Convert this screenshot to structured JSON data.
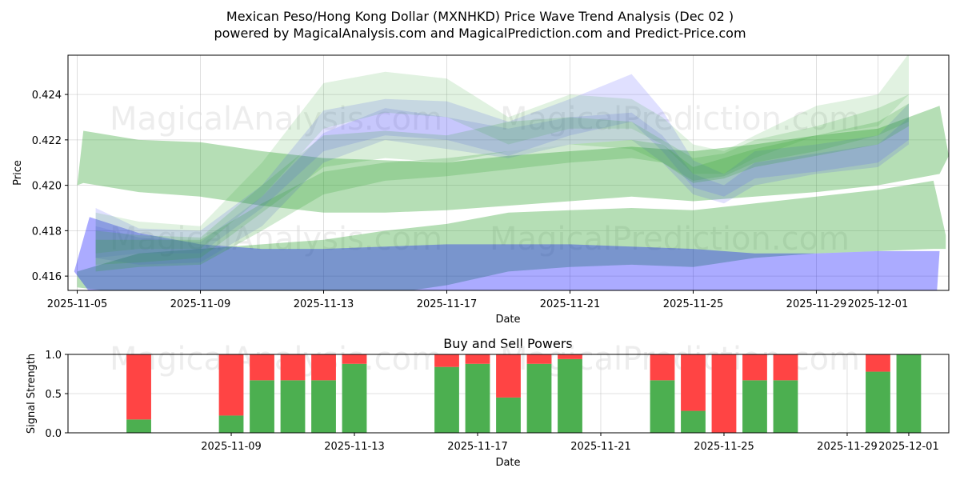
{
  "chart_data": [
    {
      "type": "area",
      "title_line1": "Mexican Peso/Hong Kong Dollar (MXNHKD) Price Wave Trend Analysis (Dec 02 )",
      "title_line2": "powered by MagicalAnalysis.com and MagicalPrediction.com and Predict-Price.com",
      "xlabel": "Date",
      "ylabel": "Price",
      "xlim": [
        -0.3,
        28.3
      ],
      "ylim": [
        0.41537,
        0.42573
      ],
      "x_ticks": [
        {
          "x": 0,
          "label": "2025-11-05"
        },
        {
          "x": 4,
          "label": "2025-11-09"
        },
        {
          "x": 8,
          "label": "2025-11-13"
        },
        {
          "x": 12,
          "label": "2025-11-17"
        },
        {
          "x": 16,
          "label": "2025-11-21"
        },
        {
          "x": 20,
          "label": "2025-11-25"
        },
        {
          "x": 24,
          "label": "2025-11-29"
        },
        {
          "x": 26,
          "label": "2025-12-01"
        }
      ],
      "y_ticks": [
        {
          "v": 0.416,
          "label": "0.416"
        },
        {
          "v": 0.418,
          "label": "0.418"
        },
        {
          "v": 0.42,
          "label": "0.420"
        },
        {
          "v": 0.422,
          "label": "0.422"
        },
        {
          "v": 0.424,
          "label": "0.424"
        }
      ],
      "grid": true,
      "watermarks": [
        "MagicalAnalysis.com",
        "MagicalPrediction.com",
        "MagicalAnalysis.com",
        "MagicalPrediction.com"
      ],
      "bands": [
        {
          "name": "wide-green-upper",
          "color": "#2ca02c",
          "opacity": 0.35,
          "x": [
            0,
            0.2,
            2,
            4,
            6,
            8,
            10,
            12,
            14,
            16,
            18,
            20,
            22,
            24,
            26,
            28,
            28.3
          ],
          "upper": [
            0.42,
            0.4224,
            0.422,
            0.4219,
            0.4215,
            0.4212,
            0.4211,
            0.421,
            0.4213,
            0.4215,
            0.4217,
            0.4215,
            0.4218,
            0.4222,
            0.4225,
            0.4235,
            0.4213
          ],
          "lower": [
            0.42,
            0.4201,
            0.4197,
            0.4195,
            0.4191,
            0.4188,
            0.4188,
            0.4189,
            0.4191,
            0.4193,
            0.4195,
            0.4193,
            0.4195,
            0.4197,
            0.42,
            0.4205,
            0.4213
          ]
        },
        {
          "name": "wide-green-lower",
          "color": "#2ca02c",
          "opacity": 0.35,
          "x": [
            0,
            2,
            4,
            6,
            8,
            10,
            12,
            14,
            16,
            18,
            20,
            22,
            24,
            26,
            27.8,
            28.2
          ],
          "upper": [
            0.4162,
            0.417,
            0.4172,
            0.4174,
            0.4176,
            0.418,
            0.4183,
            0.4188,
            0.4189,
            0.419,
            0.4189,
            0.4192,
            0.4195,
            0.4198,
            0.4202,
            0.4178
          ],
          "lower": [
            0.4155,
            0.4152,
            0.415,
            0.415,
            0.415,
            0.4152,
            0.4156,
            0.4162,
            0.4164,
            0.4165,
            0.4164,
            0.4168,
            0.417,
            0.4171,
            0.4172,
            0.4172
          ]
        },
        {
          "name": "blue-lower",
          "color": "#0000ff",
          "opacity": 0.33,
          "x": [
            -0.1,
            0.4,
            2,
            4,
            6,
            8,
            10,
            12,
            14,
            16,
            18,
            20,
            22,
            24,
            26,
            28,
            27.9
          ],
          "upper": [
            0.4162,
            0.4186,
            0.4179,
            0.4174,
            0.4172,
            0.4172,
            0.4173,
            0.4174,
            0.4174,
            0.4174,
            0.4173,
            0.4172,
            0.417,
            0.417,
            0.4171,
            0.4171,
            0.415
          ],
          "lower": [
            0.4162,
            0.4153,
            0.415,
            0.415,
            0.415,
            0.415,
            0.415,
            0.415,
            0.415,
            0.415,
            0.415,
            0.415,
            0.415,
            0.415,
            0.415,
            0.415,
            0.415
          ]
        },
        {
          "name": "blue-wave-1",
          "color": "#6666ff",
          "opacity": 0.2,
          "x": [
            0.6,
            2,
            4,
            6,
            8,
            10,
            12,
            14,
            16,
            18,
            19,
            20,
            21,
            22,
            24,
            26,
            27
          ],
          "upper": [
            0.419,
            0.4181,
            0.418,
            0.42,
            0.4233,
            0.4238,
            0.4237,
            0.4228,
            0.4238,
            0.4249,
            0.4233,
            0.4211,
            0.4205,
            0.4215,
            0.4218,
            0.4222,
            0.4236
          ],
          "lower": [
            0.4168,
            0.417,
            0.417,
            0.419,
            0.4215,
            0.4222,
            0.422,
            0.4213,
            0.4222,
            0.4228,
            0.4215,
            0.4199,
            0.4195,
            0.4203,
            0.4206,
            0.421,
            0.422
          ]
        },
        {
          "name": "blue-wave-2",
          "color": "#4444ee",
          "opacity": 0.16,
          "x": [
            0.6,
            2,
            4,
            6,
            8,
            10,
            12,
            14,
            16,
            18,
            19,
            20,
            21,
            22,
            24,
            26,
            27
          ],
          "upper": [
            0.4182,
            0.4177,
            0.4175,
            0.4195,
            0.4223,
            0.4234,
            0.423,
            0.4225,
            0.423,
            0.4232,
            0.4222,
            0.4205,
            0.42,
            0.421,
            0.4214,
            0.4218,
            0.423
          ],
          "lower": [
            0.4168,
            0.4165,
            0.4166,
            0.4182,
            0.421,
            0.422,
            0.4216,
            0.4212,
            0.4218,
            0.422,
            0.421,
            0.4196,
            0.4192,
            0.42,
            0.4205,
            0.4208,
            0.4218
          ]
        },
        {
          "name": "green-wave-1",
          "color": "#2ca02c",
          "opacity": 0.14,
          "x": [
            0.6,
            2,
            4,
            6,
            8,
            10,
            12,
            14,
            16,
            18,
            19,
            20,
            21,
            22,
            24,
            26,
            27
          ],
          "upper": [
            0.4188,
            0.4184,
            0.4182,
            0.421,
            0.4245,
            0.425,
            0.4247,
            0.423,
            0.424,
            0.4238,
            0.423,
            0.4218,
            0.4215,
            0.4222,
            0.4235,
            0.424,
            0.4258
          ],
          "lower": [
            0.417,
            0.4172,
            0.4172,
            0.4195,
            0.4225,
            0.4232,
            0.423,
            0.4218,
            0.4225,
            0.4225,
            0.4218,
            0.4205,
            0.4205,
            0.4212,
            0.4222,
            0.4226,
            0.424
          ]
        },
        {
          "name": "green-wave-2",
          "color": "#2ca02c",
          "opacity": 0.18,
          "x": [
            0.6,
            2,
            4,
            6,
            8,
            10,
            12,
            14,
            16,
            18,
            19,
            20,
            21,
            22,
            24,
            26,
            27
          ],
          "upper": [
            0.418,
            0.4178,
            0.4177,
            0.42,
            0.4222,
            0.4224,
            0.4222,
            0.4228,
            0.423,
            0.4228,
            0.422,
            0.4212,
            0.4214,
            0.422,
            0.4226,
            0.4234,
            0.424
          ],
          "lower": [
            0.4165,
            0.4166,
            0.4168,
            0.4188,
            0.4208,
            0.4212,
            0.421,
            0.4215,
            0.4218,
            0.4216,
            0.421,
            0.4202,
            0.4204,
            0.421,
            0.4215,
            0.4222,
            0.4228
          ]
        },
        {
          "name": "green-wave-3",
          "color": "#2ca02c",
          "opacity": 0.22,
          "x": [
            0.6,
            2,
            4,
            6,
            8,
            10,
            12,
            14,
            16,
            18,
            19,
            20,
            21,
            22,
            24,
            26,
            27
          ],
          "upper": [
            0.4176,
            0.4176,
            0.4176,
            0.4192,
            0.4206,
            0.421,
            0.4212,
            0.4215,
            0.4218,
            0.422,
            0.4218,
            0.4208,
            0.4212,
            0.4216,
            0.4222,
            0.4228,
            0.4236
          ],
          "lower": [
            0.4162,
            0.4164,
            0.4165,
            0.418,
            0.4196,
            0.4202,
            0.4204,
            0.4207,
            0.421,
            0.4212,
            0.421,
            0.4201,
            0.4203,
            0.4208,
            0.4213,
            0.4218,
            0.4226
          ]
        }
      ]
    },
    {
      "type": "bar",
      "title": "Buy and Sell Powers",
      "xlabel": "Date",
      "ylabel": "Signal Strength",
      "xlim": [
        -1.3,
        27.3
      ],
      "ylim": [
        0,
        1
      ],
      "y_ticks": [
        {
          "v": 0.0,
          "label": "0.0"
        },
        {
          "v": 0.5,
          "label": "0.5"
        },
        {
          "v": 1.0,
          "label": "1.0"
        }
      ],
      "x_ticks": [
        {
          "x": 4,
          "label": "2025-11-09"
        },
        {
          "x": 8,
          "label": "2025-11-13"
        },
        {
          "x": 12,
          "label": "2025-11-17"
        },
        {
          "x": 16,
          "label": "2025-11-21"
        },
        {
          "x": 20,
          "label": "2025-11-25"
        },
        {
          "x": 24,
          "label": "2025-11-29"
        },
        {
          "x": 26,
          "label": "2025-12-01"
        }
      ],
      "grid": true,
      "watermarks": [
        "MagicalAnalysis.com",
        "MagicalPrediction.com"
      ],
      "buy_color": "#4caf50",
      "sell_color": "#ff4444",
      "bars": [
        {
          "x": 1,
          "buy": 0.17
        },
        {
          "x": 4,
          "buy": 0.22
        },
        {
          "x": 5,
          "buy": 0.67
        },
        {
          "x": 6,
          "buy": 0.67
        },
        {
          "x": 7,
          "buy": 0.67
        },
        {
          "x": 8,
          "buy": 0.88
        },
        {
          "x": 11,
          "buy": 0.84
        },
        {
          "x": 12,
          "buy": 0.88
        },
        {
          "x": 13,
          "buy": 0.45
        },
        {
          "x": 14,
          "buy": 0.88
        },
        {
          "x": 15,
          "buy": 0.94
        },
        {
          "x": 18,
          "buy": 0.67
        },
        {
          "x": 19,
          "buy": 0.28
        },
        {
          "x": 20,
          "buy": 0.0
        },
        {
          "x": 21,
          "buy": 0.67
        },
        {
          "x": 22,
          "buy": 0.67
        },
        {
          "x": 25,
          "buy": 0.78
        },
        {
          "x": 26,
          "buy": 1.0
        }
      ]
    }
  ]
}
